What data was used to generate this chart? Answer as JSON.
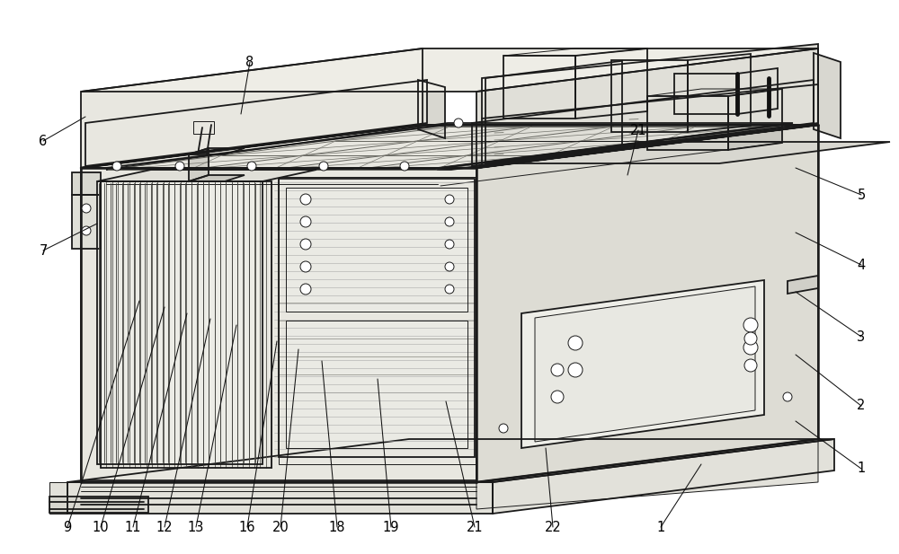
{
  "background_color": "#ffffff",
  "line_color": "#1a1a1a",
  "label_color": "#000000",
  "figsize": [
    10.0,
    6.17
  ],
  "dpi": 100,
  "lw_main": 1.3,
  "lw_thick": 1.8,
  "lw_thin": 0.7,
  "lw_hair": 0.5,
  "fill_top": "#f0efe8",
  "fill_front": "#e8e7e0",
  "fill_right": "#dddcd4",
  "fill_inner": "#d8d7d0",
  "fill_base_top": "#efefea",
  "fill_base_side": "#e2e1da",
  "fill_dark": "#c8c7c0",
  "leaders": [
    [
      75,
      30,
      155,
      282,
      "9"
    ],
    [
      112,
      30,
      183,
      275,
      "10"
    ],
    [
      148,
      30,
      208,
      268,
      "11"
    ],
    [
      183,
      30,
      234,
      262,
      "12"
    ],
    [
      218,
      30,
      263,
      255,
      "13"
    ],
    [
      275,
      30,
      308,
      237,
      "16"
    ],
    [
      312,
      30,
      332,
      228,
      "20"
    ],
    [
      375,
      30,
      358,
      215,
      "18"
    ],
    [
      435,
      30,
      420,
      195,
      "19"
    ],
    [
      528,
      30,
      496,
      170,
      "21"
    ],
    [
      615,
      30,
      607,
      118,
      "22"
    ],
    [
      735,
      30,
      780,
      100,
      "1"
    ],
    [
      958,
      95,
      885,
      148,
      "1"
    ],
    [
      958,
      165,
      885,
      222,
      "2"
    ],
    [
      958,
      242,
      885,
      292,
      "3"
    ],
    [
      958,
      322,
      885,
      358,
      "4"
    ],
    [
      958,
      400,
      885,
      430,
      "5"
    ],
    [
      48,
      338,
      108,
      368,
      "7"
    ],
    [
      48,
      460,
      95,
      487,
      "6"
    ],
    [
      278,
      548,
      268,
      490,
      "8"
    ],
    [
      710,
      472,
      698,
      422,
      "21"
    ]
  ]
}
